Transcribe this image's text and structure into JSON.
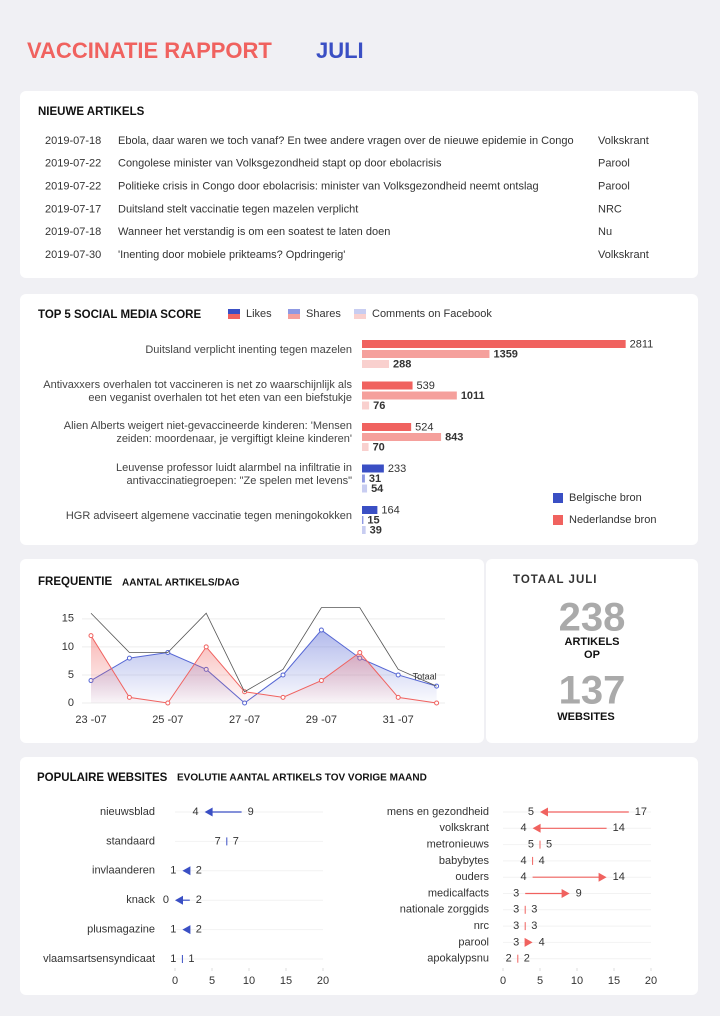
{
  "header": {
    "title": "VACCINATIE RAPPORT",
    "month": "JULI"
  },
  "articles": {
    "title": "NIEUWE ARTIKELS",
    "rows": [
      [
        "2019-07-18",
        "Ebola, daar waren we toch vanaf? En twee andere vragen over de nieuwe epidemie in Congo",
        "Volkskrant"
      ],
      [
        "2019-07-22",
        "Congolese minister van Volksgezondheid stapt op door ebolacrisis",
        "Parool"
      ],
      [
        "2019-07-22",
        "Politieke crisis in Congo door ebolacrisis: minister van Volksgezondheid neemt ontslag",
        "Parool"
      ],
      [
        "2019-07-17",
        "Duitsland stelt vaccinatie tegen mazelen verplicht",
        "NRC"
      ],
      [
        "2019-07-18",
        "Wanneer het verstandig is om een soatest te laten doen",
        "Nu"
      ],
      [
        "2019-07-30",
        "'Inenting door mobiele prikteams? Opdringerig'",
        "Volkskrant"
      ]
    ]
  },
  "totals": {
    "title": "TOTAAL JULI",
    "articles": 238,
    "articles_label": "ARTIKELS OP",
    "websites": 137,
    "websites_label": "WEBSITES"
  },
  "websites": {
    "title": "POPULAIRE WEBSITES",
    "subtitle": "EVOLUTIE AANTAL ARTIKELS TOV VORIGE MAAND"
  },
  "chart_data": [
    {
      "type": "bar",
      "orientation": "horizontal",
      "title": "TOP 5 SOCIAL MEDIA SCORE",
      "categories": [
        "Duitsland verplicht inenting tegen mazelen",
        "Antivaxxers overhalen tot vaccineren is net zo waarschijnlijk als een veganist overhalen tot het eten van een biefstukje",
        "Alien Alberts weigert niet-gevaccineerde kinderen: 'Mensen zeiden: moordenaar, je vergiftigt kleine kinderen'",
        "Leuvense professor luidt alarmbel na infiltratie in antivaccinatiegroepen: \"Ze spelen met levens\"",
        "HGR adviseert algemene vaccinatie tegen meningokokken"
      ],
      "series": [
        {
          "name": "Likes",
          "values": [
            2811,
            539,
            524,
            233,
            164
          ]
        },
        {
          "name": "Shares",
          "values": [
            1359,
            1011,
            843,
            31,
            15
          ]
        },
        {
          "name": "Comments on Facebook",
          "values": [
            288,
            76,
            70,
            54,
            39
          ]
        }
      ],
      "groups": [
        {
          "name": "Belgische bron",
          "colors": [
            "#3a4fc4",
            "#8f99e2",
            "#c8cdf1"
          ]
        },
        {
          "name": "Nederlandse bron",
          "colors": [
            "#f0625f",
            "#f5a09c",
            "#f9d0ce"
          ]
        }
      ],
      "category_group": [
        1,
        1,
        1,
        0,
        0
      ],
      "xlim": [
        0,
        2900
      ]
    },
    {
      "type": "line",
      "title": "FREQUENTIE",
      "subtitle": "AANTAL ARTIKELS/DAG",
      "categories": [
        "23 -07",
        null,
        "25 -07",
        null,
        "27 -07",
        null,
        "29 -07",
        null,
        "31 -07",
        null
      ],
      "series": [
        {
          "color": "#5566d4",
          "fill": true,
          "values": [
            4,
            8,
            9,
            6,
            0,
            5,
            13,
            8,
            5,
            3
          ]
        },
        {
          "color": "#f0625f",
          "fill": true,
          "values": [
            12,
            1,
            0,
            10,
            2,
            1,
            4,
            9,
            1,
            0
          ]
        },
        {
          "name": "Totaal",
          "color": "#555555",
          "fill": false,
          "values": [
            16,
            9,
            9,
            16,
            2,
            6,
            17,
            17,
            6,
            3
          ]
        }
      ],
      "ylim": [
        0,
        18
      ],
      "yticks": [
        0,
        5,
        10,
        15
      ],
      "grid": true
    },
    {
      "type": "arrow",
      "color": "#3a4fc4",
      "categories": [
        "nieuwsblad",
        "standaard",
        "invlaanderen",
        "knack",
        "plusmagazine",
        "vlaamsartsensyndicaat"
      ],
      "values": [
        4,
        7,
        1,
        0,
        1,
        1
      ],
      "previous": [
        9,
        7,
        2,
        2,
        2,
        1
      ],
      "xlim": [
        0,
        20
      ],
      "xticks": [
        0,
        5,
        10,
        15,
        20
      ]
    },
    {
      "type": "arrow",
      "color": "#f0625f",
      "categories": [
        "mens en gezondheid",
        "volkskrant",
        "metronieuws",
        "babybytes",
        "ouders",
        "medicalfacts",
        "nationale zorggids",
        "nrc",
        "parool",
        "apokalypsnu"
      ],
      "values": [
        5,
        4,
        5,
        4,
        14,
        9,
        3,
        3,
        4,
        2
      ],
      "previous": [
        17,
        14,
        5,
        4,
        4,
        3,
        3,
        3,
        3,
        2
      ],
      "xlim": [
        0,
        20
      ],
      "xticks": [
        0,
        5,
        10,
        15,
        20
      ]
    }
  ]
}
